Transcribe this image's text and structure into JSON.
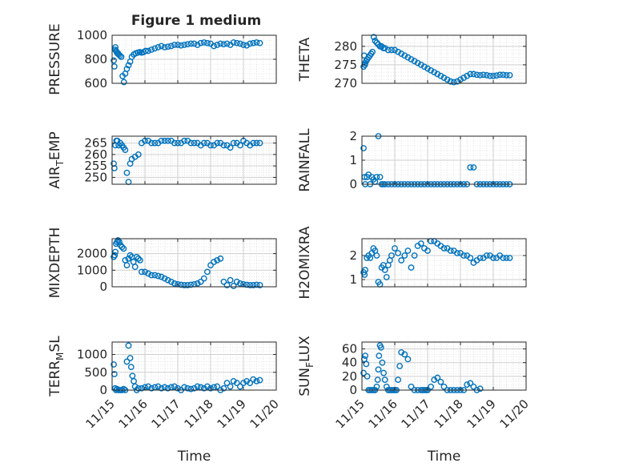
{
  "figure_title": "Figure 1 medium",
  "colors": {
    "marker": "#0072BD",
    "axis": "#262626",
    "grid": "#d6d6d6",
    "background": "#ffffff"
  },
  "chart_data": [
    {
      "type": "scatter",
      "title": "Figure 1 medium",
      "ylabel": "PRESSURE",
      "xlabel": "",
      "xlim": [
        0,
        5
      ],
      "ylim": [
        600,
        1000
      ],
      "yticks": [
        600,
        800,
        1000
      ],
      "xtick_labels": [],
      "grid": true,
      "x": [
        0.05,
        0.07,
        0.09,
        0.1,
        0.12,
        0.14,
        0.16,
        0.18,
        0.2,
        0.24,
        0.28,
        0.32,
        0.36,
        0.4,
        0.45,
        0.5,
        0.55,
        0.6,
        0.66,
        0.72,
        0.78,
        0.84,
        0.9,
        0.96,
        1.02,
        1.1,
        1.2,
        1.3,
        1.4,
        1.5,
        1.6,
        1.7,
        1.8,
        1.9,
        2.0,
        2.1,
        2.2,
        2.3,
        2.4,
        2.5,
        2.6,
        2.7,
        2.8,
        2.9,
        3.0,
        3.1,
        3.2,
        3.3,
        3.4,
        3.5,
        3.6,
        3.7,
        3.8,
        3.9,
        4.0,
        4.1,
        4.2,
        4.3,
        4.4,
        4.5
      ],
      "y": [
        790,
        740,
        880,
        900,
        870,
        860,
        850,
        850,
        840,
        830,
        820,
        660,
        610,
        680,
        720,
        750,
        780,
        820,
        840,
        850,
        855,
        860,
        855,
        860,
        870,
        870,
        880,
        890,
        900,
        910,
        900,
        905,
        910,
        920,
        920,
        915,
        920,
        925,
        930,
        930,
        920,
        935,
        940,
        935,
        930,
        910,
        920,
        930,
        925,
        930,
        920,
        940,
        935,
        930,
        920,
        915,
        930,
        935,
        940,
        935
      ]
    },
    {
      "type": "scatter",
      "title": "",
      "ylabel": "THETA",
      "xlabel": "",
      "xlim": [
        0,
        5
      ],
      "ylim": [
        270,
        283
      ],
      "yticks": [
        270,
        275,
        280
      ],
      "xtick_labels": [],
      "grid": true,
      "x": [
        0.05,
        0.07,
        0.09,
        0.1,
        0.13,
        0.16,
        0.2,
        0.24,
        0.28,
        0.32,
        0.36,
        0.4,
        0.45,
        0.5,
        0.55,
        0.6,
        0.65,
        0.7,
        0.8,
        0.9,
        1.0,
        1.1,
        1.2,
        1.3,
        1.4,
        1.5,
        1.6,
        1.7,
        1.8,
        1.9,
        2.0,
        2.1,
        2.2,
        2.3,
        2.4,
        2.5,
        2.6,
        2.7,
        2.8,
        2.9,
        3.0,
        3.1,
        3.2,
        3.3,
        3.4,
        3.5,
        3.6,
        3.7,
        3.8,
        3.9,
        4.0,
        4.1,
        4.2,
        4.3,
        4.4,
        4.5
      ],
      "y": [
        274.5,
        277.5,
        275,
        275.5,
        276,
        276.5,
        277,
        277.5,
        278,
        278.5,
        282.5,
        281.5,
        281,
        280.5,
        280,
        280,
        279.5,
        279.5,
        279,
        279,
        279,
        278.5,
        278,
        277.5,
        277,
        276.5,
        276,
        275.5,
        275,
        274.5,
        274,
        273.5,
        273,
        272.5,
        272,
        271.5,
        271,
        270.5,
        270.3,
        270.5,
        271,
        271.5,
        272,
        272.5,
        272.5,
        272.3,
        272.2,
        272.3,
        272.2,
        272,
        272,
        272.1,
        272.3,
        272.3,
        272.2,
        272.2
      ]
    },
    {
      "type": "scatter",
      "title": "",
      "ylabel": "AIR_TEMP",
      "xlabel": "",
      "xlim": [
        0,
        5
      ],
      "ylim": [
        247,
        268
      ],
      "yticks": [
        250,
        255,
        260,
        265
      ],
      "xtick_labels": [],
      "grid": true,
      "x": [
        0.05,
        0.07,
        0.1,
        0.13,
        0.16,
        0.2,
        0.25,
        0.3,
        0.35,
        0.4,
        0.45,
        0.5,
        0.55,
        0.6,
        0.7,
        0.8,
        0.9,
        1.0,
        1.1,
        1.2,
        1.3,
        1.4,
        1.5,
        1.6,
        1.7,
        1.8,
        1.9,
        2.0,
        2.1,
        2.2,
        2.3,
        2.4,
        2.5,
        2.6,
        2.7,
        2.8,
        2.9,
        3.0,
        3.1,
        3.2,
        3.3,
        3.4,
        3.5,
        3.6,
        3.7,
        3.8,
        3.9,
        4.0,
        4.1,
        4.2,
        4.3,
        4.4,
        4.5
      ],
      "y": [
        256,
        254,
        264,
        266,
        266,
        264,
        265,
        264,
        263,
        262,
        252,
        248,
        256,
        258,
        259,
        260,
        265,
        266,
        266,
        265,
        265,
        265,
        266,
        266,
        266,
        266,
        265,
        265,
        265,
        266,
        266,
        265,
        265,
        265,
        264,
        265,
        265,
        264,
        264,
        265,
        265,
        264,
        264,
        263,
        265,
        265,
        264,
        266,
        265,
        264,
        265,
        265,
        265
      ]
    },
    {
      "type": "scatter",
      "title": "",
      "ylabel": "RAINFALL",
      "xlabel": "",
      "xlim": [
        0,
        5
      ],
      "ylim": [
        0,
        2
      ],
      "yticks": [
        0,
        1,
        2
      ],
      "xtick_labels": [],
      "grid": true,
      "x": [
        0.05,
        0.08,
        0.1,
        0.15,
        0.2,
        0.25,
        0.3,
        0.35,
        0.4,
        0.45,
        0.5,
        0.55,
        0.6,
        0.65,
        0.7,
        0.8,
        0.9,
        1.0,
        1.1,
        1.2,
        1.3,
        1.4,
        1.5,
        1.6,
        1.7,
        1.8,
        1.9,
        2.0,
        2.1,
        2.2,
        2.3,
        2.4,
        2.5,
        2.6,
        2.7,
        2.8,
        2.9,
        3.0,
        3.1,
        3.2,
        3.3,
        3.4,
        3.5,
        3.6,
        3.7,
        3.8,
        3.9,
        4.0,
        4.1,
        4.2,
        4.3,
        4.4,
        4.5
      ],
      "y": [
        1.5,
        0.3,
        0,
        0.3,
        0.4,
        0,
        0.3,
        0.2,
        0.1,
        0.3,
        2.0,
        0.3,
        0,
        0,
        0,
        0,
        0,
        0,
        0,
        0,
        0,
        0,
        0,
        0,
        0,
        0,
        0,
        0,
        0,
        0,
        0,
        0,
        0,
        0,
        0,
        0,
        0,
        0,
        0,
        0,
        0.7,
        0.7,
        0,
        0,
        0,
        0,
        0,
        0,
        0,
        0,
        0,
        0,
        0
      ]
    },
    {
      "type": "scatter",
      "title": "",
      "ylabel": "MIXDEPTH",
      "xlabel": "",
      "xlim": [
        0,
        5
      ],
      "ylim": [
        0,
        2900
      ],
      "yticks": [
        0,
        1000,
        2000
      ],
      "xtick_labels": [],
      "grid": true,
      "x": [
        0.05,
        0.08,
        0.1,
        0.12,
        0.15,
        0.18,
        0.22,
        0.26,
        0.3,
        0.35,
        0.4,
        0.45,
        0.5,
        0.55,
        0.6,
        0.65,
        0.7,
        0.75,
        0.8,
        0.85,
        0.9,
        1.0,
        1.1,
        1.2,
        1.3,
        1.4,
        1.5,
        1.6,
        1.7,
        1.8,
        1.9,
        2.0,
        2.1,
        2.2,
        2.3,
        2.4,
        2.5,
        2.6,
        2.7,
        2.8,
        2.9,
        3.0,
        3.1,
        3.2,
        3.3,
        3.4,
        3.5,
        3.6,
        3.7,
        3.8,
        3.9,
        4.0,
        4.1,
        4.2,
        4.3,
        4.4,
        4.5
      ],
      "y": [
        1800,
        1900,
        2100,
        2600,
        2700,
        2800,
        2700,
        2500,
        2400,
        2300,
        1600,
        1300,
        1700,
        1900,
        1800,
        1500,
        1200,
        1800,
        1700,
        1600,
        900,
        900,
        800,
        700,
        700,
        650,
        600,
        500,
        400,
        300,
        200,
        150,
        120,
        100,
        100,
        120,
        150,
        200,
        300,
        500,
        900,
        1300,
        1500,
        1600,
        1700,
        300,
        100,
        400,
        50,
        300,
        200,
        150,
        120,
        100,
        100,
        120,
        100
      ]
    },
    {
      "type": "scatter",
      "title": "",
      "ylabel": "H2OMIXRA",
      "xlabel": "",
      "xlim": [
        0,
        5
      ],
      "ylim": [
        0.7,
        2.7
      ],
      "yticks": [
        1,
        2
      ],
      "xtick_labels": [],
      "grid": true,
      "x": [
        0.05,
        0.08,
        0.1,
        0.15,
        0.2,
        0.25,
        0.3,
        0.35,
        0.4,
        0.45,
        0.5,
        0.55,
        0.6,
        0.65,
        0.7,
        0.75,
        0.8,
        0.85,
        0.9,
        1.0,
        1.1,
        1.2,
        1.3,
        1.4,
        1.5,
        1.6,
        1.7,
        1.8,
        1.9,
        2.0,
        2.1,
        2.2,
        2.3,
        2.4,
        2.5,
        2.6,
        2.7,
        2.8,
        2.9,
        3.0,
        3.1,
        3.2,
        3.3,
        3.4,
        3.5,
        3.6,
        3.7,
        3.8,
        3.9,
        4.0,
        4.1,
        4.2,
        4.3,
        4.4,
        4.5
      ],
      "y": [
        1.3,
        1.2,
        1.4,
        1.9,
        2.0,
        1.9,
        2.1,
        2.3,
        2.2,
        2.0,
        0.9,
        0.8,
        1.5,
        1.6,
        1.4,
        1.1,
        1.6,
        1.8,
        2.0,
        2.3,
        2.1,
        1.8,
        2.0,
        2.2,
        1.5,
        2.0,
        2.4,
        2.5,
        2.3,
        2.2,
        2.6,
        2.6,
        2.5,
        2.4,
        2.3,
        2.3,
        2.2,
        2.2,
        2.1,
        2.1,
        2.0,
        2.0,
        1.9,
        1.7,
        1.8,
        1.9,
        1.9,
        2.0,
        2.0,
        1.9,
        1.9,
        2.0,
        1.9,
        1.9,
        1.9
      ]
    },
    {
      "type": "scatter",
      "title": "",
      "ylabel": "TERR_MSL",
      "xlabel": "Time",
      "xlim": [
        0,
        5
      ],
      "ylim": [
        0,
        1350
      ],
      "yticks": [
        0,
        500,
        1000
      ],
      "xtick_labels": [
        "11/15",
        "11/16",
        "11/17",
        "11/18",
        "11/19",
        "11/20"
      ],
      "grid": true,
      "x": [
        0.05,
        0.07,
        0.09,
        0.12,
        0.15,
        0.2,
        0.25,
        0.3,
        0.35,
        0.4,
        0.45,
        0.5,
        0.55,
        0.58,
        0.62,
        0.66,
        0.7,
        0.75,
        0.8,
        0.9,
        1.0,
        1.1,
        1.2,
        1.3,
        1.4,
        1.5,
        1.6,
        1.7,
        1.8,
        1.9,
        2.0,
        2.1,
        2.2,
        2.3,
        2.4,
        2.5,
        2.6,
        2.7,
        2.8,
        2.9,
        3.0,
        3.1,
        3.2,
        3.3,
        3.4,
        3.5,
        3.6,
        3.7,
        3.8,
        3.9,
        4.0,
        4.1,
        4.2,
        4.3,
        4.4,
        4.5
      ],
      "y": [
        720,
        450,
        50,
        0,
        30,
        0,
        0,
        0,
        30,
        0,
        800,
        1250,
        900,
        650,
        400,
        250,
        100,
        0,
        50,
        50,
        80,
        100,
        50,
        80,
        100,
        50,
        80,
        50,
        80,
        100,
        50,
        0,
        80,
        50,
        30,
        50,
        100,
        80,
        50,
        100,
        50,
        80,
        100,
        0,
        50,
        200,
        100,
        250,
        200,
        100,
        200,
        250,
        200,
        300,
        250,
        280
      ]
    },
    {
      "type": "scatter",
      "title": "",
      "ylabel": "SUN_FLUX",
      "xlabel": "Time",
      "xlim": [
        0,
        5
      ],
      "ylim": [
        0,
        70
      ],
      "yticks": [
        0,
        20,
        40,
        60
      ],
      "xtick_labels": [
        "11/15",
        "11/16",
        "11/17",
        "11/18",
        "11/19",
        "11/20"
      ],
      "grid": true,
      "x": [
        0.05,
        0.07,
        0.1,
        0.13,
        0.16,
        0.2,
        0.25,
        0.3,
        0.35,
        0.4,
        0.45,
        0.48,
        0.5,
        0.52,
        0.55,
        0.58,
        0.62,
        0.66,
        0.7,
        0.75,
        0.8,
        0.85,
        0.9,
        0.95,
        1.0,
        1.05,
        1.1,
        1.15,
        1.2,
        1.3,
        1.4,
        1.5,
        1.6,
        1.7,
        1.8,
        1.85,
        1.9,
        1.95,
        2.0,
        2.1,
        2.2,
        2.3,
        2.4,
        2.5,
        2.6,
        2.7,
        2.8,
        2.9,
        3.0,
        3.1,
        3.2,
        3.3,
        3.4,
        3.5,
        3.6
      ],
      "y": [
        25,
        45,
        50,
        38,
        20,
        0,
        0,
        0,
        0,
        0,
        5,
        15,
        30,
        50,
        65,
        62,
        40,
        25,
        15,
        5,
        0,
        0,
        0,
        0,
        0,
        0,
        15,
        35,
        55,
        52,
        45,
        5,
        0,
        0,
        0,
        0,
        0,
        0,
        0,
        5,
        15,
        18,
        12,
        5,
        0,
        0,
        0,
        0,
        0,
        0,
        8,
        10,
        5,
        0,
        2
      ]
    }
  ]
}
